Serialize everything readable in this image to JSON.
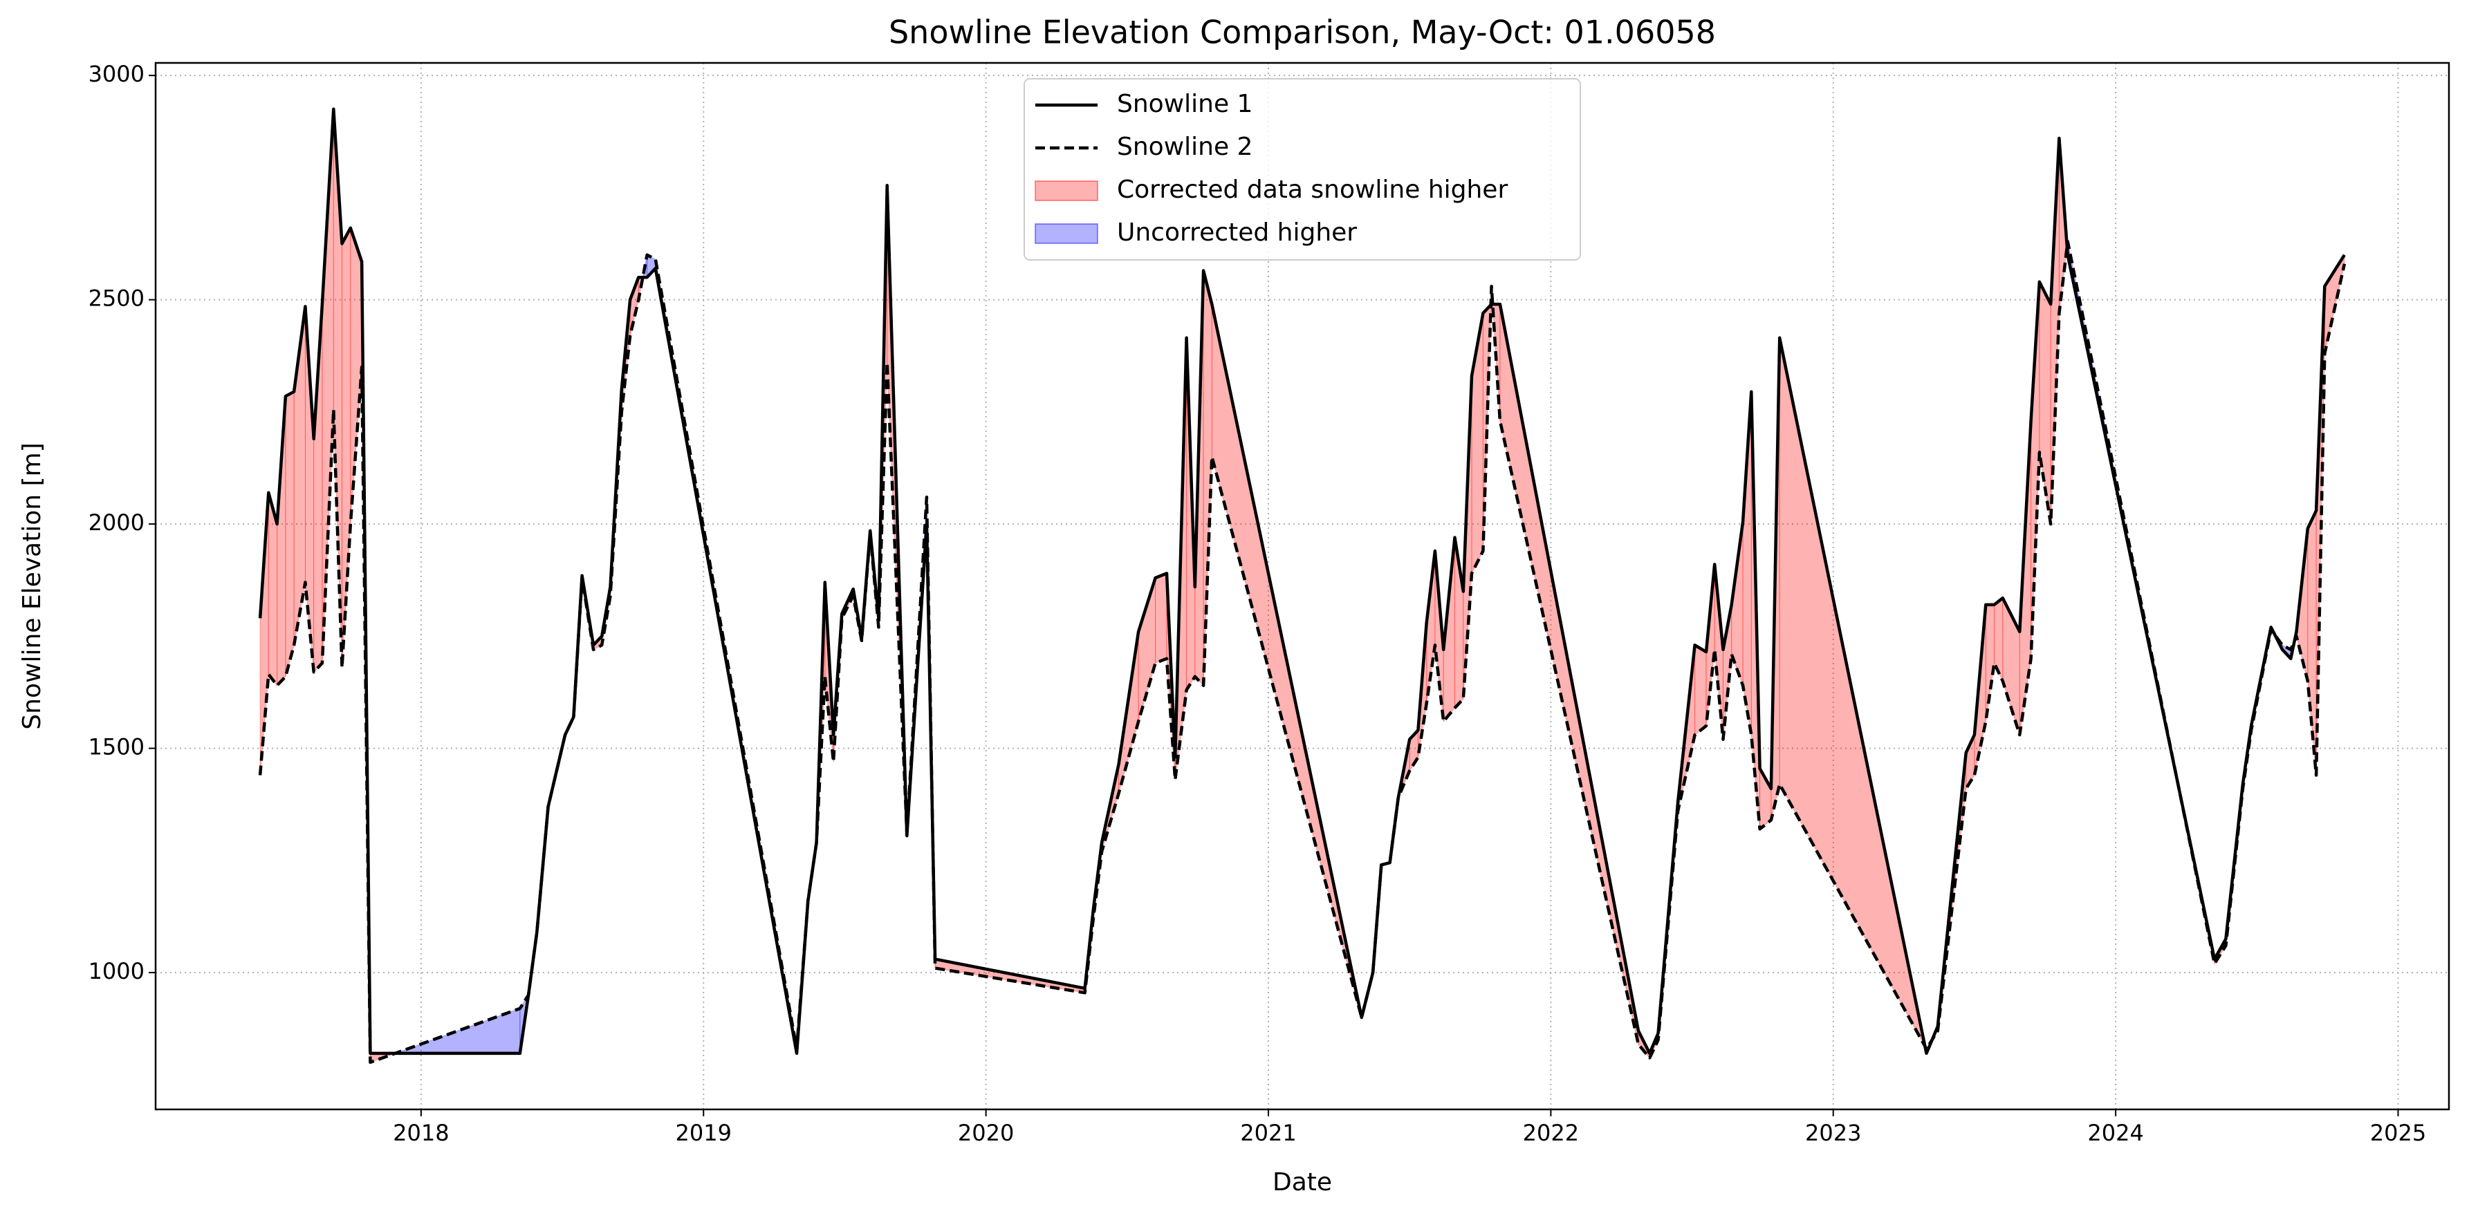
{
  "chart_data": {
    "type": "line",
    "title": "Snowline Elevation Comparison, May-Oct: 01.06058",
    "xlabel": "Date",
    "ylabel": "Snowline Elevation [m]",
    "xlim": [
      2017.06,
      2025.18
    ],
    "ylim": [
      695,
      3028
    ],
    "xticks": [
      2018,
      2019,
      2020,
      2021,
      2022,
      2023,
      2024,
      2025
    ],
    "yticks": [
      1000,
      1500,
      2000,
      2500,
      3000
    ],
    "grid": true,
    "legend": "upper center",
    "x": [
      2017.43,
      2017.46,
      2017.49,
      2017.52,
      2017.55,
      2017.59,
      2017.62,
      2017.65,
      2017.69,
      2017.72,
      2017.75,
      2017.79,
      2017.82,
      2018.35,
      2018.38,
      2018.41,
      2018.45,
      2018.51,
      2018.54,
      2018.57,
      2018.61,
      2018.64,
      2018.67,
      2018.71,
      2018.74,
      2018.77,
      2018.8,
      2018.83,
      2019.33,
      2019.37,
      2019.4,
      2019.43,
      2019.46,
      2019.49,
      2019.53,
      2019.56,
      2019.59,
      2019.62,
      2019.65,
      2019.72,
      2019.79,
      2019.82,
      2020.35,
      2020.38,
      2020.41,
      2020.47,
      2020.54,
      2020.6,
      2020.64,
      2020.67,
      2020.71,
      2020.74,
      2020.77,
      2020.8,
      2021.33,
      2021.37,
      2021.4,
      2021.43,
      2021.46,
      2021.5,
      2021.53,
      2021.56,
      2021.59,
      2021.62,
      2021.66,
      2021.69,
      2021.72,
      2021.76,
      2021.79,
      2021.82,
      2022.31,
      2022.35,
      2022.38,
      2022.45,
      2022.51,
      2022.55,
      2022.58,
      2022.61,
      2022.64,
      2022.68,
      2022.71,
      2022.74,
      2022.78,
      2022.81,
      2023.33,
      2023.37,
      2023.47,
      2023.5,
      2023.54,
      2023.57,
      2023.6,
      2023.66,
      2023.7,
      2023.73,
      2023.77,
      2023.8,
      2023.83,
      2024.35,
      2024.39,
      2024.45,
      2024.48,
      2024.55,
      2024.59,
      2024.62,
      2024.64,
      2024.68,
      2024.71,
      2024.74,
      2024.81
    ],
    "series": [
      {
        "name": "Snowline 1",
        "color": "#000000",
        "dash": "solid",
        "values": [
          1790,
          2070,
          2000,
          2285,
          2295,
          2485,
          2190,
          2490,
          2925,
          2625,
          2660,
          2585,
          820,
          820,
          950,
          1090,
          1370,
          1530,
          1570,
          1885,
          1730,
          1750,
          1860,
          2300,
          2500,
          2550,
          2550,
          2570,
          820,
          1160,
          1290,
          1870,
          1530,
          1800,
          1855,
          1745,
          1985,
          1790,
          2755,
          1305,
          2000,
          1030,
          965,
          1140,
          1290,
          1465,
          1760,
          1880,
          1890,
          1480,
          2415,
          1860,
          2565,
          2490,
          900,
          1000,
          1240,
          1245,
          1390,
          1520,
          1540,
          1780,
          1940,
          1720,
          1970,
          1850,
          2330,
          2470,
          2490,
          2490,
          870,
          820,
          865,
          1380,
          1730,
          1715,
          1910,
          1720,
          1820,
          2005,
          2295,
          1455,
          1410,
          2415,
          820,
          880,
          1490,
          1530,
          1820,
          1820,
          1835,
          1760,
          2230,
          2540,
          2490,
          2860,
          2600,
          1030,
          1075,
          1420,
          1550,
          1770,
          1720,
          1700,
          1760,
          1990,
          2030,
          2530,
          2600
        ]
      },
      {
        "name": "Snowline 2",
        "color": "#000000",
        "dash": "dashed",
        "values": [
          1440,
          1665,
          1640,
          1660,
          1730,
          1870,
          1670,
          1690,
          2255,
          1680,
          2000,
          2350,
          800,
          920,
          950,
          1090,
          1370,
          1530,
          1570,
          1880,
          1720,
          1730,
          1840,
          2250,
          2420,
          2500,
          2600,
          2590,
          830,
          1160,
          1290,
          1660,
          1470,
          1790,
          1840,
          1740,
          1980,
          1770,
          2360,
          1310,
          2060,
          1010,
          955,
          1120,
          1270,
          1400,
          1560,
          1690,
          1700,
          1430,
          1630,
          1660,
          1640,
          2150,
          900,
          1000,
          1240,
          1245,
          1390,
          1450,
          1480,
          1600,
          1730,
          1560,
          1590,
          1610,
          1890,
          1940,
          2530,
          2230,
          840,
          810,
          850,
          1360,
          1530,
          1550,
          1720,
          1520,
          1710,
          1640,
          1530,
          1320,
          1340,
          1420,
          830,
          870,
          1410,
          1440,
          1560,
          1690,
          1650,
          1530,
          1700,
          2160,
          2000,
          2470,
          2630,
          1020,
          1060,
          1410,
          1540,
          1765,
          1730,
          1720,
          1750,
          1650,
          1440,
          2380,
          2580
        ]
      }
    ],
    "fills": [
      {
        "name": "Corrected data snowline higher",
        "color": "#ff0000"
      },
      {
        "name": "Uncorrected higher",
        "color": "#0000ff"
      }
    ]
  }
}
